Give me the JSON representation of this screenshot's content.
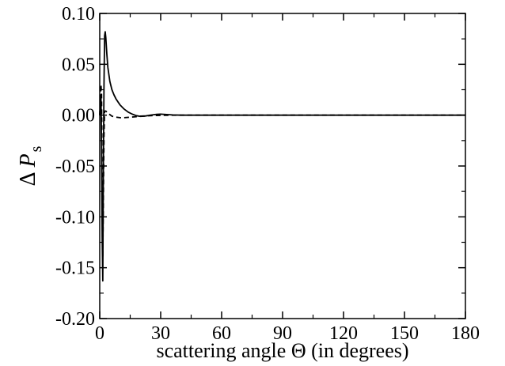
{
  "chart_data": {
    "type": "line",
    "xlabel": "scattering angle Θ (in degrees)",
    "ylabel": {
      "symbol": "Δ",
      "variable": "P",
      "subscript": "s"
    },
    "xlim": [
      0,
      180
    ],
    "ylim": [
      -0.2,
      0.1
    ],
    "x_ticks": [
      0,
      30,
      60,
      90,
      120,
      150,
      180
    ],
    "x_tick_labels": [
      "0",
      "30",
      "60",
      "90",
      "120",
      "150",
      "180"
    ],
    "y_ticks": [
      0.1,
      0.05,
      0.0,
      -0.05,
      -0.1,
      -0.15,
      -0.2
    ],
    "y_tick_labels": [
      "0.10",
      "0.05",
      "0.00",
      "-0.05",
      "-0.10",
      "-0.15",
      "-0.20"
    ],
    "grid": false,
    "legend": "none",
    "series": [
      {
        "style": "solid",
        "color": "#000000",
        "x": [
          0,
          0.3,
          0.6,
          0.9,
          1.2,
          1.5,
          1.8,
          2.1,
          2.4,
          2.7,
          3.0,
          3.5,
          4.0,
          5.0,
          6.0,
          7.0,
          8.0,
          9.0,
          10.0,
          12.0,
          14.0,
          16.0,
          18.0,
          20.0,
          22.0,
          25.0,
          28.0,
          30.0,
          33.0,
          36.0,
          40.0,
          45.0,
          50.0,
          60.0,
          90.0,
          120.0,
          150.0,
          180.0
        ],
        "y": [
          0.0,
          0.01,
          0.02,
          -0.03,
          -0.12,
          -0.163,
          -0.05,
          0.03,
          0.078,
          0.082,
          0.076,
          0.06,
          0.047,
          0.033,
          0.025,
          0.02,
          0.016,
          0.013,
          0.01,
          0.006,
          0.003,
          0.001,
          -0.0005,
          -0.0012,
          -0.001,
          0.0,
          0.0008,
          0.001,
          0.0006,
          0.0002,
          0.0,
          0.0,
          0.0,
          0.0,
          0.0,
          0.0,
          0.0,
          0.0
        ]
      },
      {
        "style": "dashed",
        "color": "#000000",
        "x": [
          0,
          0.3,
          0.6,
          0.9,
          1.2,
          1.5,
          1.8,
          2.1,
          2.4,
          3.0,
          4.0,
          5.0,
          6.0,
          8.0,
          10.0,
          12.0,
          15.0,
          18.0,
          20.0,
          25.0,
          30.0,
          40.0,
          60.0,
          90.0,
          120.0,
          150.0,
          180.0
        ],
        "y": [
          0.0,
          0.015,
          0.03,
          0.02,
          -0.06,
          -0.14,
          -0.08,
          -0.02,
          0.004,
          0.004,
          0.002,
          0.0005,
          -0.001,
          -0.002,
          -0.0025,
          -0.0025,
          -0.002,
          -0.0015,
          -0.001,
          -0.0005,
          -0.0002,
          0.0,
          0.0,
          0.0,
          0.0,
          0.0,
          0.0
        ]
      }
    ]
  }
}
